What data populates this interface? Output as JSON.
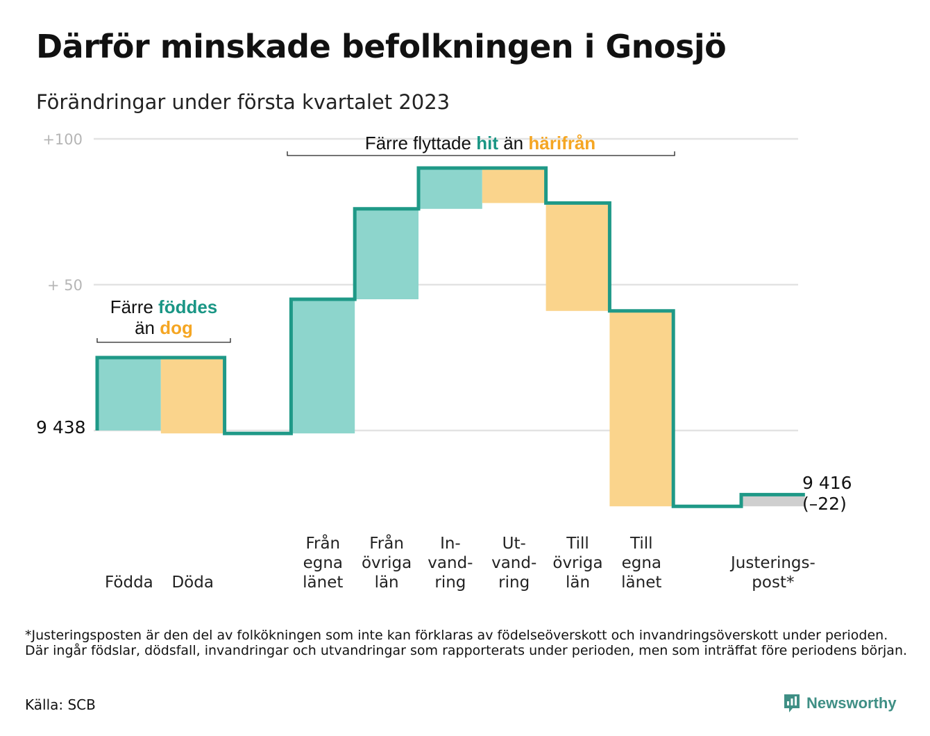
{
  "title": "Därför minskade befolkningen i Gnosjö",
  "subtitle": "Förändringar under första kvartalet 2023",
  "colors": {
    "line": "#1f9987",
    "increase": "#8dd5cc",
    "decrease": "#fad48c",
    "adjustment": "#cfcfcf",
    "teal_text": "#1a9685",
    "orange_text": "#f5a623",
    "grid": "#e3e3e3"
  },
  "chart_data": {
    "type": "waterfall",
    "start_value": 9438,
    "start_label": "9 438",
    "end_label": "9 416",
    "end_change_label": "(–22)",
    "y_ticks": [
      {
        "value": 100,
        "label": "+100"
      },
      {
        "value": 50,
        "label": "+ 50"
      }
    ],
    "ylim": [
      -26,
      103
    ],
    "grid": true,
    "steps": [
      {
        "key": "fodda",
        "label_lines": [
          "Födda"
        ],
        "change": 25,
        "kind": "increase"
      },
      {
        "key": "doda",
        "label_lines": [
          "Döda"
        ],
        "change": -26,
        "kind": "decrease"
      },
      {
        "key": "gap",
        "label_lines": [],
        "change": 0,
        "kind": "none"
      },
      {
        "key": "fran-egna-lanet",
        "label_lines": [
          "Från",
          "egna",
          "länet"
        ],
        "change": 46,
        "kind": "increase"
      },
      {
        "key": "fran-ovriga-lan",
        "label_lines": [
          "Från",
          "övriga",
          "län"
        ],
        "change": 31,
        "kind": "increase"
      },
      {
        "key": "invandring",
        "label_lines": [
          "In-",
          "vand-",
          "ring"
        ],
        "change": 14,
        "kind": "increase"
      },
      {
        "key": "utvandring",
        "label_lines": [
          "Ut-",
          "vand-",
          "ring"
        ],
        "change": -12,
        "kind": "decrease"
      },
      {
        "key": "till-ovriga-lan",
        "label_lines": [
          "Till",
          "övriga",
          "län"
        ],
        "change": -37,
        "kind": "decrease"
      },
      {
        "key": "till-egna-lanet",
        "label_lines": [
          "Till",
          "egna",
          "länet"
        ],
        "change": -67,
        "kind": "decrease"
      },
      {
        "key": "gap2",
        "label_lines": [],
        "change": 0,
        "kind": "none"
      },
      {
        "key": "justeringspost",
        "label_lines": [
          "Justerings-",
          "post*"
        ],
        "change": 4,
        "kind": "adjustment"
      }
    ],
    "annotations": [
      {
        "key": "births",
        "lines": [
          [
            {
              "t": "Färre "
            },
            {
              "t": "föddes",
              "c": "teal"
            }
          ],
          [
            {
              "t": "än "
            },
            {
              "t": "dog",
              "c": "orange"
            }
          ]
        ]
      },
      {
        "key": "moves",
        "lines": [
          [
            {
              "t": "Färre flyttade "
            },
            {
              "t": "hit",
              "c": "teal"
            },
            {
              "t": " än "
            },
            {
              "t": "härifrån",
              "c": "orange"
            }
          ]
        ]
      }
    ]
  },
  "footnote": "*Justeringsposten är den del av folkökningen som inte kan förklaras av födelseöverskott och invandringsöverskott under perioden. Där ingår födslar, dödsfall, invandringar och utvandringar som rapporterats under perioden, men som inträffat före periodens början.",
  "source": "Källa: SCB",
  "brand": "Newsworthy"
}
